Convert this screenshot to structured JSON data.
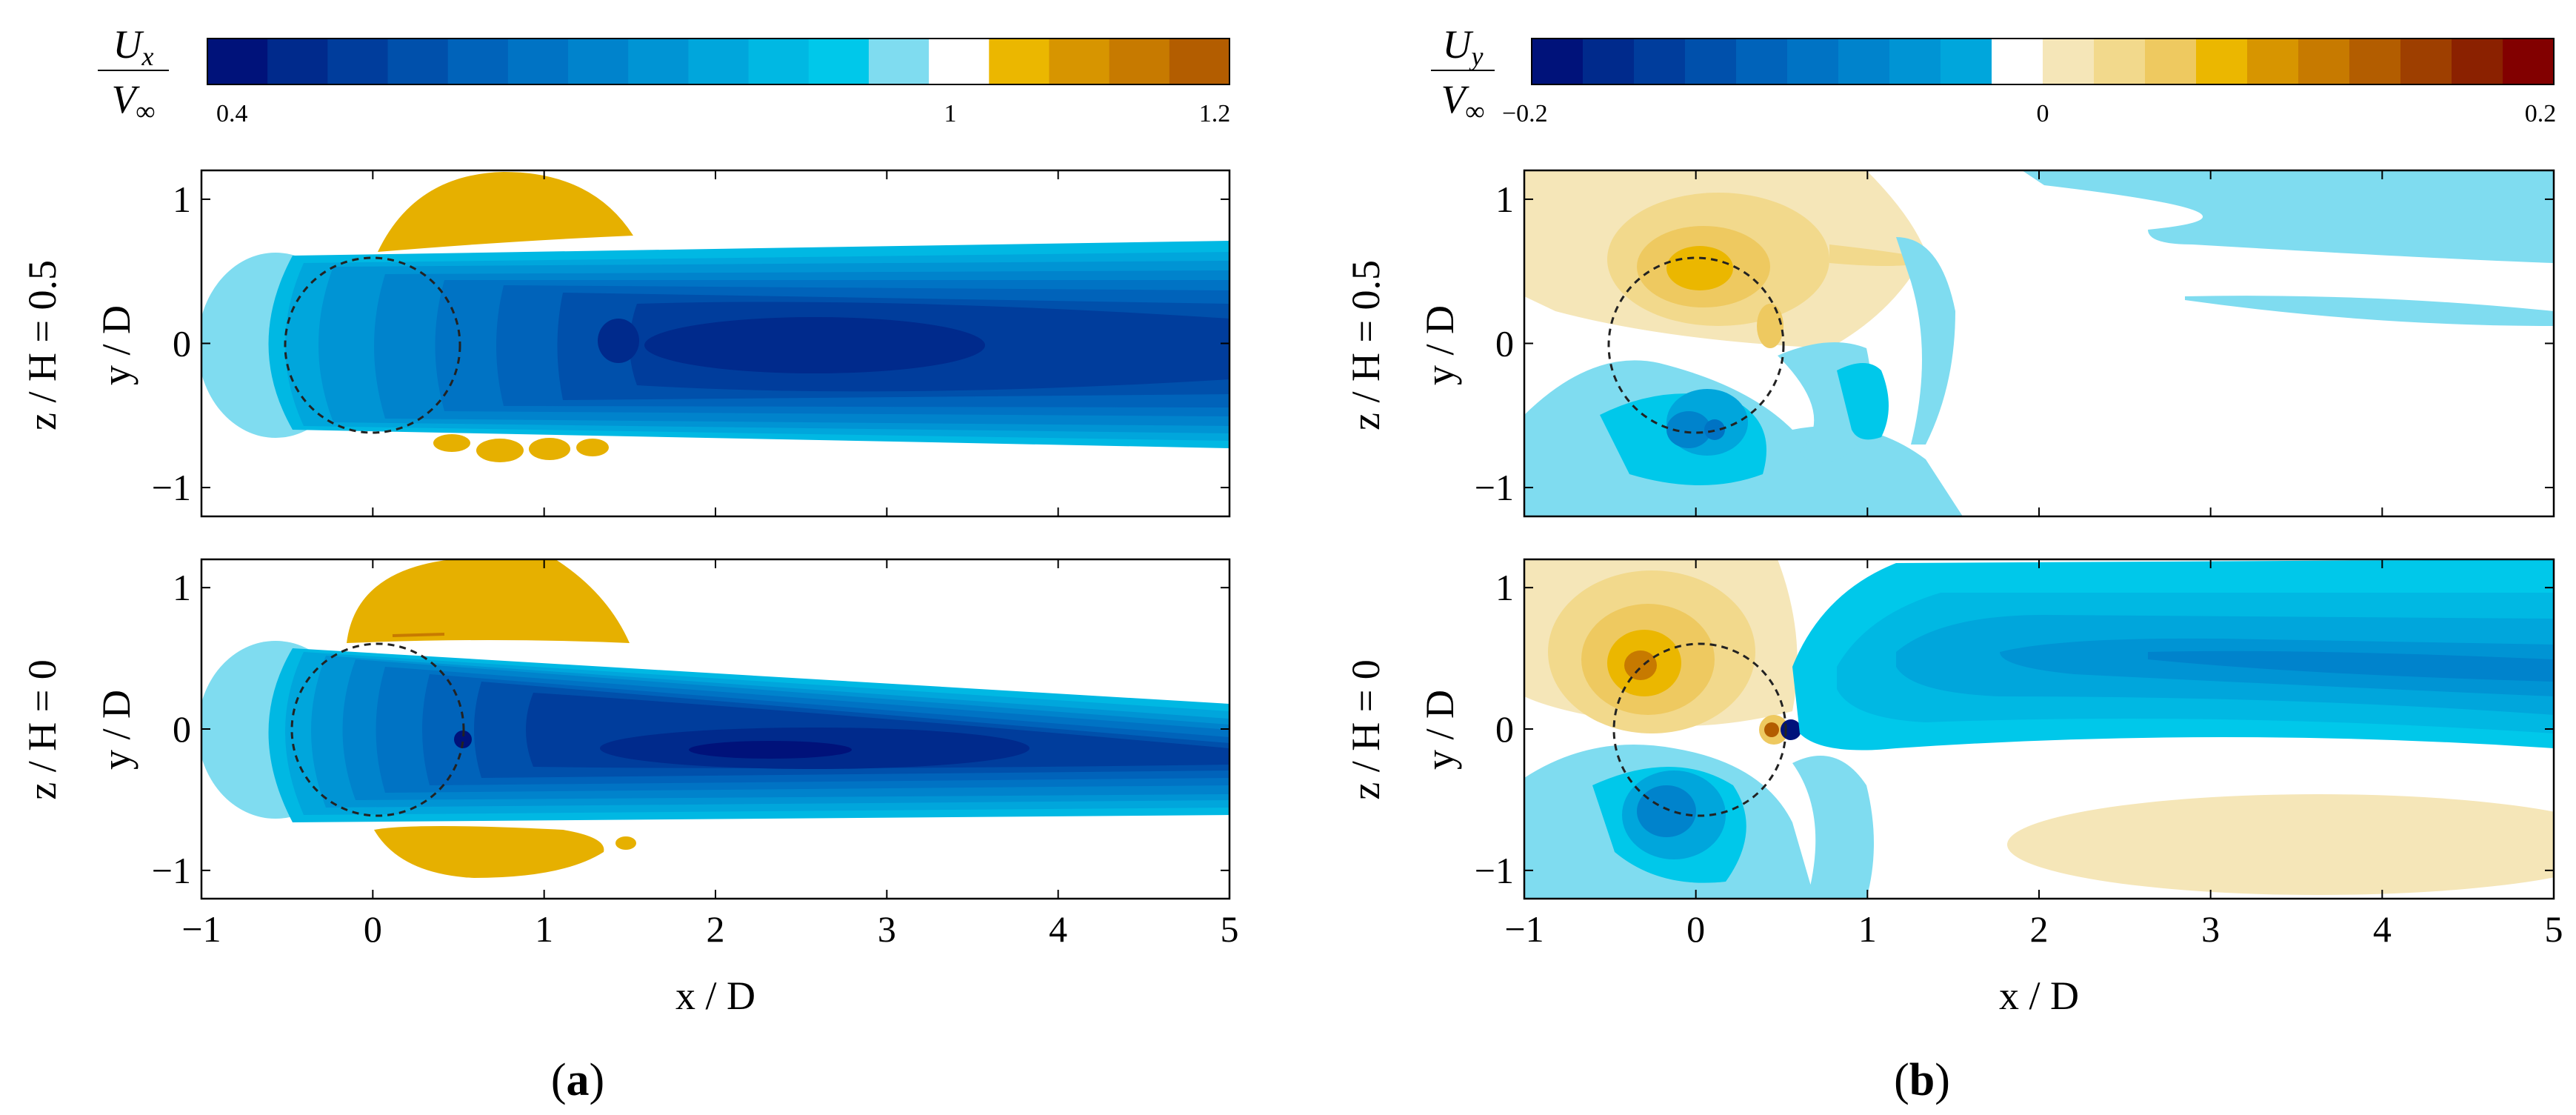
{
  "figure": {
    "caption_a": "(a)",
    "caption_b": "(b)",
    "caption_a_letter": "a",
    "caption_b_letter": "b"
  },
  "colors": {
    "blue_scale": [
      "#00127a",
      "#002a8c",
      "#003d9c",
      "#0050ab",
      "#0063ba",
      "#0073c4",
      "#0083cc",
      "#0094d4",
      "#00a6dc",
      "#00b8e3",
      "#00c8ea",
      "#7fdcf0"
    ],
    "orange_scale": [
      "#f5e6b8",
      "#f2d98c",
      "#eec960",
      "#ebb700",
      "#d79500",
      "#c77a00",
      "#b35d00",
      "#9e3f00",
      "#8b2100",
      "#820000"
    ],
    "white": "#ffffff",
    "ux_warm": "#e6b000"
  },
  "chart_data": [
    {
      "id": "panel-a",
      "type": "heatmap",
      "title": "(a)",
      "variable": "Ux / V∞",
      "colorbar": {
        "label_num": "Ux",
        "label_den": "V∞",
        "range": [
          0.4,
          1.2
        ],
        "tick_values": [
          0.4,
          1,
          1.2
        ],
        "tick_labels": [
          "0.4",
          "1",
          "1.2"
        ]
      },
      "xlabel": "x / D",
      "ylabel": "y / D",
      "xlim": [
        -1,
        5
      ],
      "ylim": [
        -1.2,
        1.2
      ],
      "xticks": [
        -1,
        0,
        1,
        2,
        3,
        4,
        5
      ],
      "yticks": [
        -1,
        0,
        1
      ],
      "subplots": [
        {
          "row_label": "z / H = 0.5",
          "z_over_H": 0.5,
          "wake_min_Ux": 0.4,
          "overshoot_max_Ux": 1.1
        },
        {
          "row_label": "z / H = 0",
          "z_over_H": 0,
          "wake_min_Ux": 0.4,
          "overshoot_max_Ux": 1.1
        }
      ],
      "rotor": {
        "center_x": 0,
        "center_y": 0,
        "radius": 0.5,
        "style": "dashed"
      }
    },
    {
      "id": "panel-b",
      "type": "heatmap",
      "title": "(b)",
      "variable": "Uy / V∞",
      "colorbar": {
        "label_num": "Uy",
        "label_den": "V∞",
        "range": [
          -0.2,
          0.2
        ],
        "tick_values": [
          -0.2,
          0,
          0.2
        ],
        "tick_labels": [
          "−0.2",
          "0",
          "0.2"
        ]
      },
      "xlabel": "x / D",
      "ylabel": "y / D",
      "xlim": [
        -1,
        5
      ],
      "ylim": [
        -1.2,
        1.2
      ],
      "xticks": [
        -1,
        0,
        1,
        2,
        3,
        4,
        5
      ],
      "yticks": [
        -1,
        0,
        1
      ],
      "subplots": [
        {
          "row_label": "z / H = 0.5",
          "z_over_H": 0.5
        },
        {
          "row_label": "z / H = 0",
          "z_over_H": 0
        }
      ],
      "rotor": {
        "center_x": 0,
        "center_y": 0,
        "radius": 0.5,
        "style": "dashed"
      }
    }
  ]
}
